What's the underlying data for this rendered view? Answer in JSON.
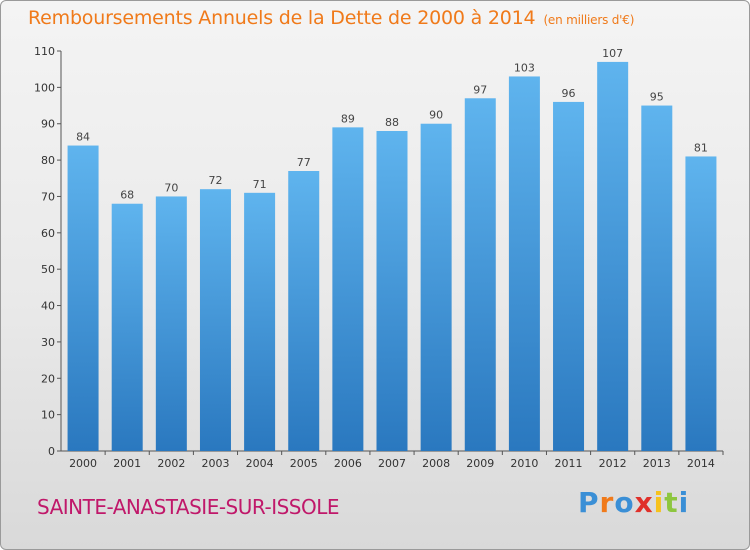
{
  "header": {
    "title": "Remboursements Annuels de la Dette de 2000 à 2014",
    "unit": "(en milliers d'€)"
  },
  "footer": {
    "commune": "SAINTE-ANASTASIE-SUR-ISSOLE",
    "logo": "Proxiti",
    "logo_colors": [
      "#3a8fd6",
      "#f07a1a",
      "#3a8fd6",
      "#e0302a",
      "#f6c21c",
      "#8dc63f",
      "#3a8fd6"
    ]
  },
  "colors": {
    "bar_top": "#5fb4ee",
    "bar_bottom": "#2a78bf",
    "title": "#f07a1a",
    "commune": "#c0186a"
  },
  "chart_data": {
    "type": "bar",
    "categories": [
      "2000",
      "2001",
      "2002",
      "2003",
      "2004",
      "2005",
      "2006",
      "2007",
      "2008",
      "2009",
      "2010",
      "2011",
      "2012",
      "2013",
      "2014"
    ],
    "values": [
      84,
      68,
      70,
      72,
      71,
      77,
      89,
      88,
      90,
      97,
      103,
      96,
      107,
      95,
      81
    ],
    "ylim": [
      0,
      110
    ],
    "yticks": [
      0,
      10,
      20,
      30,
      40,
      50,
      60,
      70,
      80,
      90,
      100,
      110
    ],
    "grid": false
  }
}
